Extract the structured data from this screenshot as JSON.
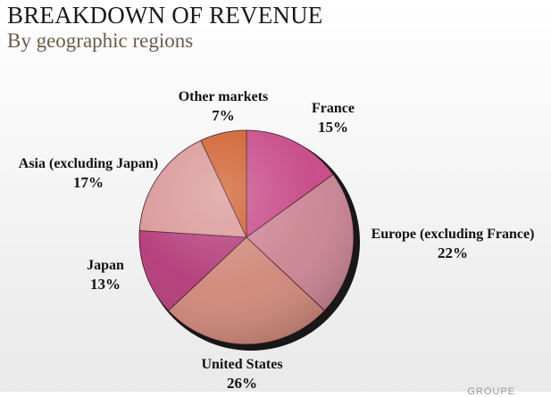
{
  "title": "BREAKDOWN OF REVENUE",
  "subtitle": "By geographic regions",
  "corner_text": "GROUPE",
  "chart_data": {
    "type": "pie",
    "title": "BREAKDOWN OF REVENUE",
    "subtitle": "By geographic regions",
    "slices": [
      {
        "label": "France",
        "value": 15,
        "value_label": "15%",
        "color": "#c54585"
      },
      {
        "label": "Europe (excluding France)",
        "value": 22,
        "value_label": "22%",
        "color": "#c98290"
      },
      {
        "label": "United States",
        "value": 26,
        "value_label": "26%",
        "color": "#cf8677"
      },
      {
        "label": "Japan",
        "value": 13,
        "value_label": "13%",
        "color": "#b23777"
      },
      {
        "label": "Asia (excluding Japan)",
        "value": 17,
        "value_label": "17%",
        "color": "#d99494"
      },
      {
        "label": "Other markets",
        "value": 7,
        "value_label": "7%",
        "color": "#cd5a26"
      }
    ]
  }
}
